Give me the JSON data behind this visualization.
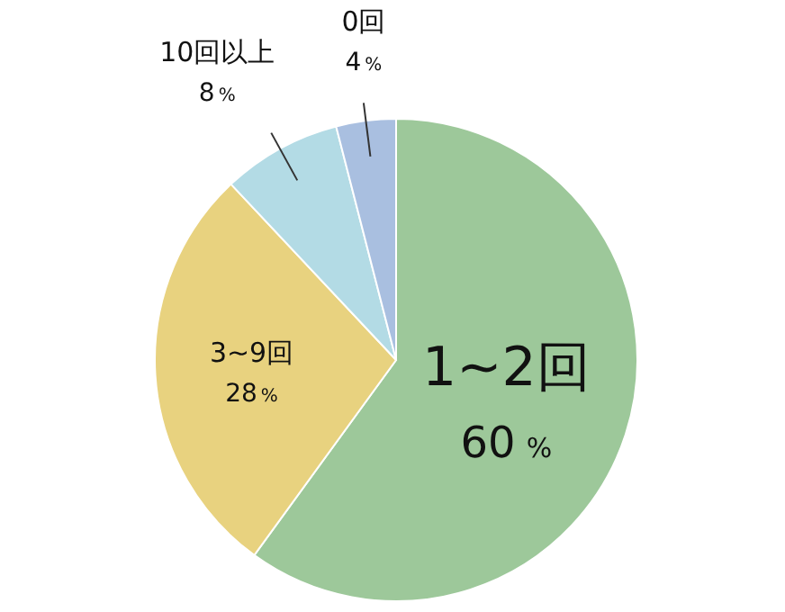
{
  "chart_data": {
    "type": "pie",
    "categories": [
      "1~2回",
      "3~9回",
      "10回以上",
      "0回"
    ],
    "values": [
      60,
      28,
      8,
      4
    ],
    "colors": [
      "#9dc89a",
      "#e8d27f",
      "#b3dbe5",
      "#a9bfe0"
    ],
    "value_labels": [
      "60%",
      "28%",
      "8%",
      "4%"
    ]
  }
}
